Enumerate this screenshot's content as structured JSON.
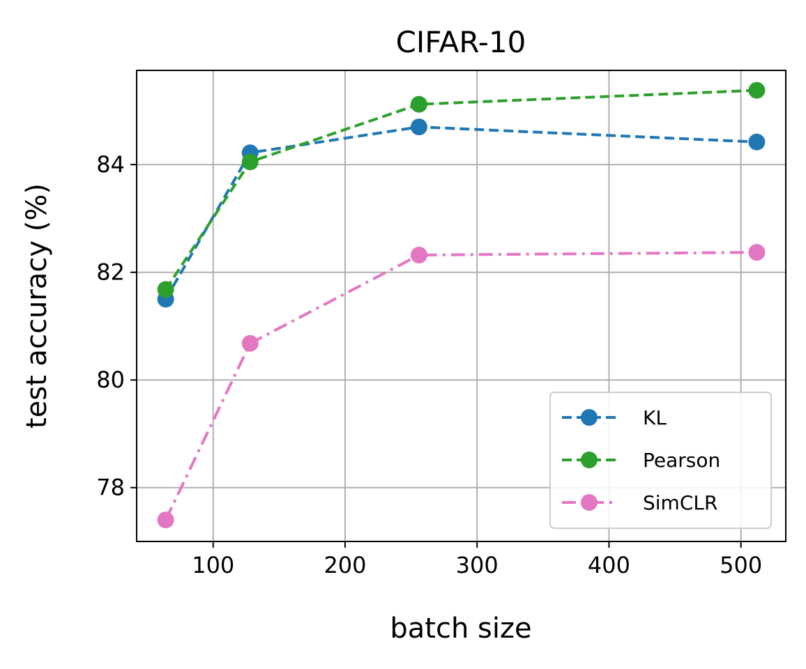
{
  "chart_data": {
    "type": "line",
    "title": "CIFAR-10",
    "xlabel": "batch size",
    "ylabel": "test accuracy (%)",
    "xlim": [
      42,
      534
    ],
    "ylim": [
      77.0,
      85.75
    ],
    "xticks": [
      100,
      200,
      300,
      400,
      500
    ],
    "yticks": [
      78,
      80,
      82,
      84
    ],
    "grid": true,
    "legend_position": "lower right",
    "series": [
      {
        "name": "KL",
        "color": "#1f77b4",
        "linestyle": "dashed",
        "marker": "circle",
        "x": [
          64,
          128,
          256,
          512
        ],
        "y": [
          81.5,
          84.22,
          84.7,
          84.42
        ]
      },
      {
        "name": "Pearson",
        "color": "#2ca02c",
        "linestyle": "dashed",
        "marker": "circle",
        "x": [
          64,
          128,
          256,
          512
        ],
        "y": [
          81.68,
          84.05,
          85.12,
          85.38
        ]
      },
      {
        "name": "SimCLR",
        "color": "#e377c2",
        "linestyle": "dashdot",
        "marker": "circle",
        "x": [
          64,
          128,
          256,
          512
        ],
        "y": [
          77.4,
          80.68,
          82.32,
          82.37
        ]
      }
    ]
  }
}
